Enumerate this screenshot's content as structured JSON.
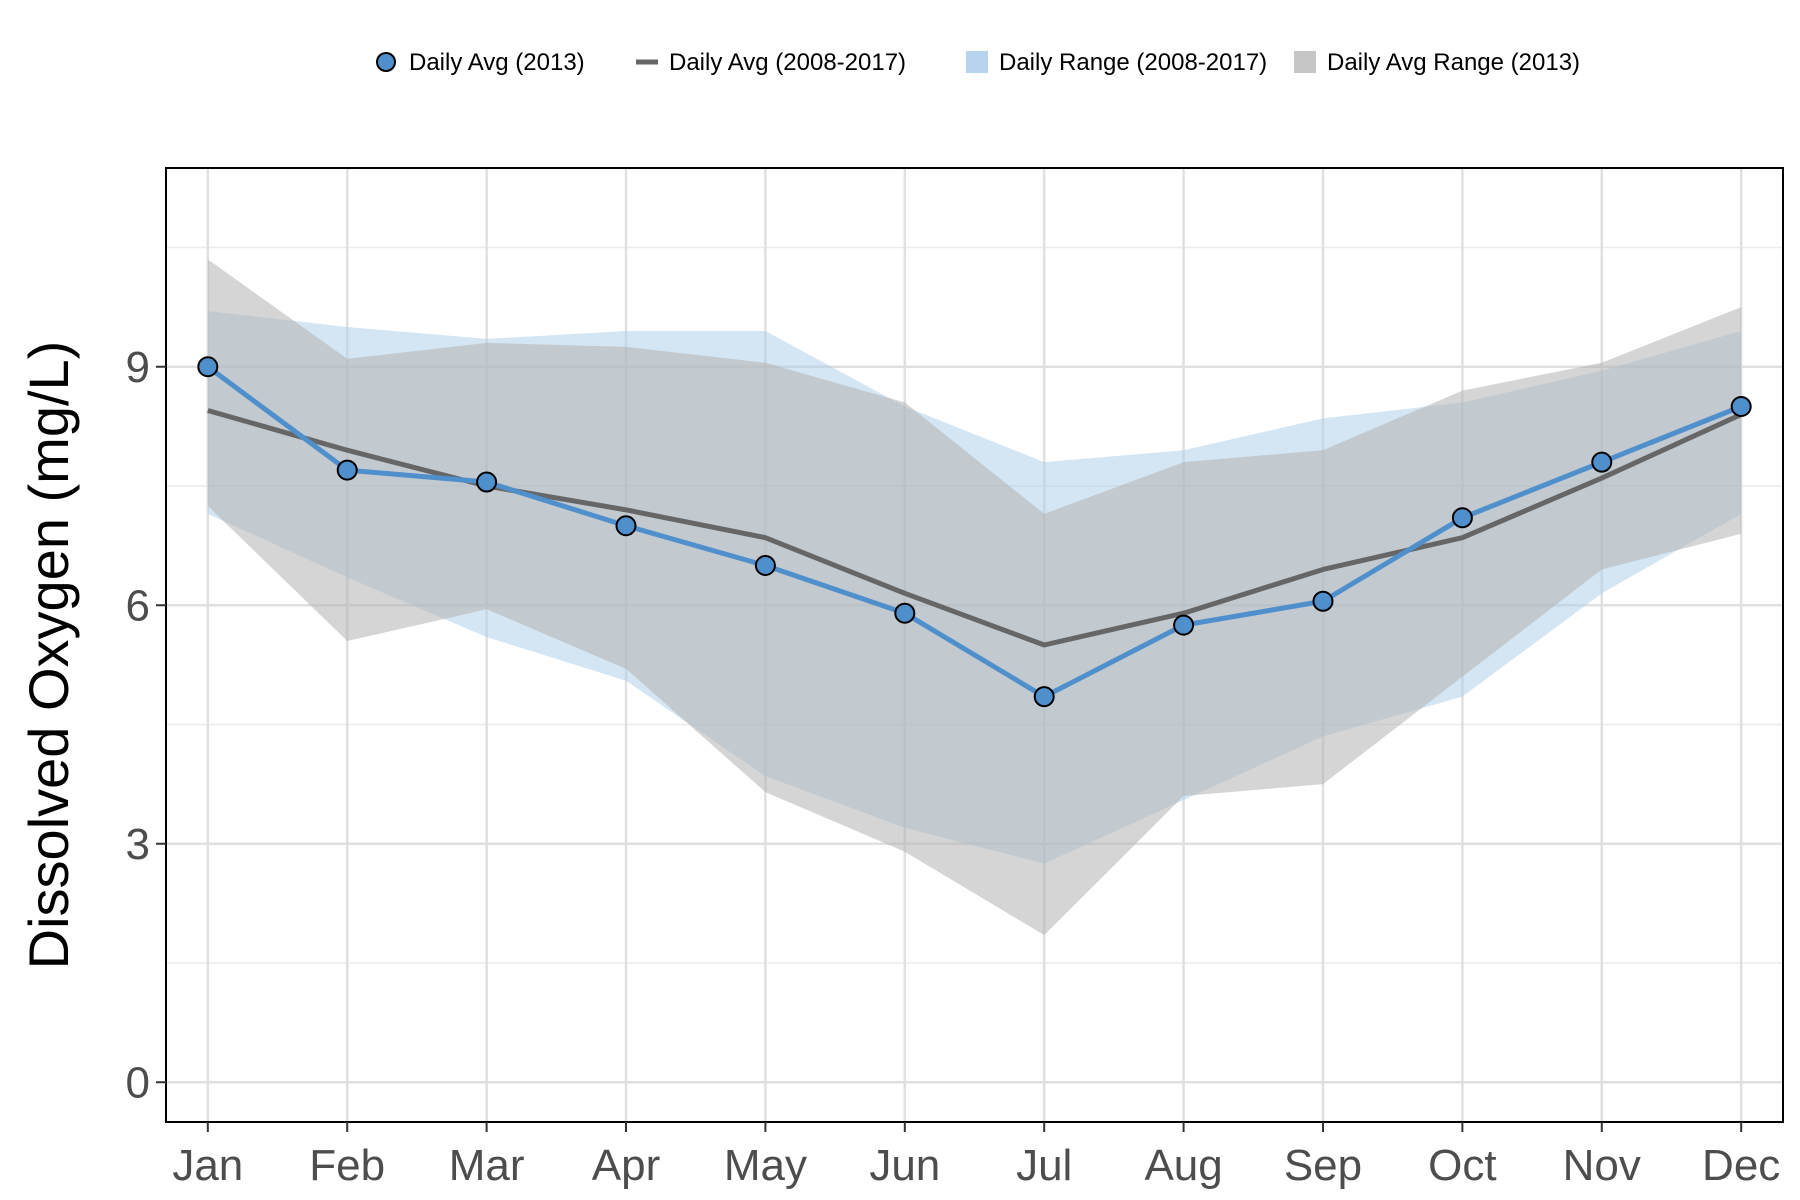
{
  "chart_data": {
    "type": "line",
    "title": "",
    "xlabel": "",
    "ylabel": "Dissolved Oxygen (mg/L)",
    "categories": [
      "Jan",
      "Feb",
      "Mar",
      "Apr",
      "May",
      "Jun",
      "Jul",
      "Aug",
      "Sep",
      "Oct",
      "Nov",
      "Dec"
    ],
    "ylim": [
      -0.5,
      11.5
    ],
    "yticks": [
      0,
      3,
      6,
      9
    ],
    "y_minor_ticks": [
      1.5,
      4.5,
      7.5,
      10.5
    ],
    "grid": true,
    "legend_position": "top",
    "legend": [
      {
        "key": "avg2013",
        "label": "Daily Avg (2013)"
      },
      {
        "key": "avg_all",
        "label": "Daily Avg (2008-2017)"
      },
      {
        "key": "range_all",
        "label": "Daily Range (2008-2017)"
      },
      {
        "key": "range2013",
        "label": "Daily Avg Range (2013)"
      }
    ],
    "series": [
      {
        "key": "avg2013",
        "kind": "line-points",
        "color": "#4f8fcc",
        "values": [
          9.0,
          7.7,
          7.55,
          7.0,
          6.5,
          5.9,
          4.85,
          5.75,
          6.05,
          7.1,
          7.8,
          8.5
        ]
      },
      {
        "key": "avg_all",
        "kind": "line",
        "color": "#666666",
        "values": [
          8.45,
          7.95,
          7.5,
          7.2,
          6.85,
          6.15,
          5.5,
          5.9,
          6.45,
          6.85,
          7.6,
          8.4
        ]
      },
      {
        "key": "range_all",
        "kind": "ribbon",
        "color": "#a9cdea",
        "low": [
          7.15,
          6.35,
          5.6,
          5.05,
          3.85,
          3.2,
          2.75,
          3.55,
          4.35,
          4.85,
          6.15,
          7.15
        ],
        "high": [
          9.7,
          9.5,
          9.35,
          9.45,
          9.45,
          8.5,
          7.8,
          7.95,
          8.35,
          8.55,
          8.95,
          9.45
        ]
      },
      {
        "key": "range2013",
        "kind": "ribbon",
        "color": "#b3b3b3",
        "low": [
          7.25,
          5.55,
          5.95,
          5.2,
          3.65,
          2.9,
          1.85,
          3.6,
          3.75,
          5.1,
          6.45,
          6.9
        ],
        "high": [
          10.35,
          9.1,
          9.3,
          9.25,
          9.05,
          8.55,
          7.15,
          7.8,
          7.95,
          8.7,
          9.05,
          9.75
        ]
      }
    ]
  }
}
